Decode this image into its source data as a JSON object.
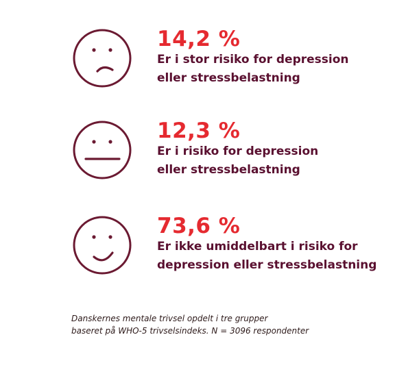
{
  "colors": {
    "accent_red": "#e52a30",
    "text_maroon": "#5a1030",
    "face_stroke": "#6b1a32"
  },
  "items": [
    {
      "icon": "sad-face-icon",
      "percent": "14,2 %",
      "line1": "Er i stor risiko for depression",
      "line2": "eller stressbelastning"
    },
    {
      "icon": "neutral-face-icon",
      "percent": "12,3 %",
      "line1": "Er i risiko for depression",
      "line2": "eller stressbelastning"
    },
    {
      "icon": "happy-face-icon",
      "percent": "73,6 %",
      "line1": "Er ikke umiddelbart i risiko for",
      "line2": "depression eller stressbelastning"
    }
  ],
  "caption": {
    "line1": "Danskernes mentale trivsel opdelt i tre grupper",
    "line2": "baseret på WHO-5 trivselsindeks. N = 3096 respondenter"
  }
}
